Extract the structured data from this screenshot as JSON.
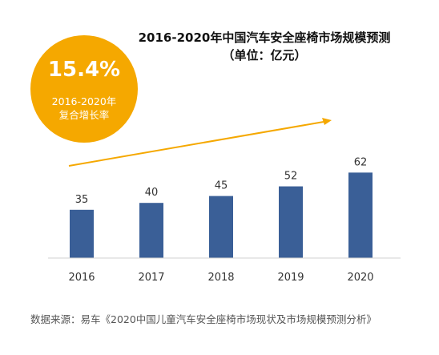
{
  "title": {
    "line1": "2016-2020年中国汽车安全座椅市场规模预测",
    "line2": "（单位：亿元）"
  },
  "badge": {
    "value": "15.4%",
    "line1": "2016-2020年",
    "line2": "复合增长率"
  },
  "source": "数据来源：易车《2020中国儿童汽车安全座椅市场现状及市场规模预测分析》",
  "colors": {
    "bar": "#3a5f97",
    "accent": "#f5a800",
    "axis": "#d0d0d0"
  },
  "chart_data": {
    "type": "bar",
    "title": "2016-2020年中国汽车安全座椅市场规模预测",
    "subtitle": "（单位：亿元）",
    "categories": [
      "2016",
      "2017",
      "2018",
      "2019",
      "2020"
    ],
    "values": [
      35,
      40,
      45,
      52,
      62
    ],
    "ylim": [
      0,
      100
    ],
    "grid": false,
    "trend_arrow": true
  }
}
